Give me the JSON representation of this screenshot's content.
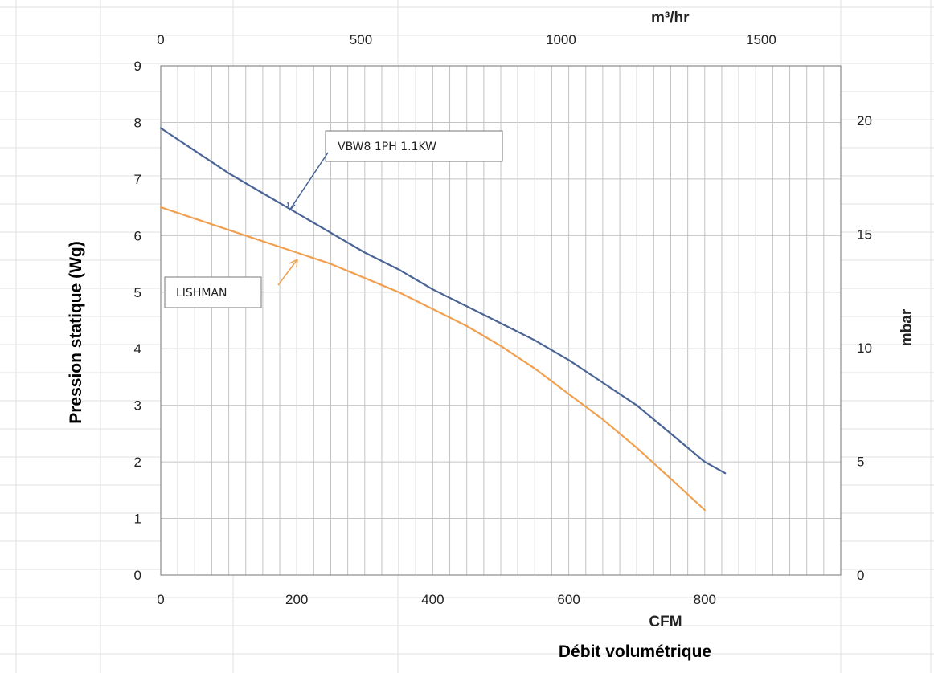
{
  "chart_data": {
    "type": "line",
    "xlabel": "Débit volumétrique",
    "x_unit": "CFM",
    "x_ticks": [
      "0",
      "200",
      "400",
      "600",
      "800"
    ],
    "xlim": [
      0,
      1000
    ],
    "x2_unit": "m³/hr",
    "x2_ticks": [
      "0",
      "500",
      "1000",
      "1500"
    ],
    "ylabel": "Pression statique (Wg)",
    "y_ticks": [
      "0",
      "1",
      "2",
      "3",
      "4",
      "5",
      "6",
      "7",
      "8",
      "9"
    ],
    "ylim": [
      0,
      9
    ],
    "y2_unit": "mbar",
    "y2_ticks": [
      "0",
      "5",
      "10",
      "15",
      "20"
    ],
    "grid": true,
    "series": [
      {
        "name": "VBW8 1PH 1.1KW",
        "color": "#4a6496",
        "points": [
          [
            0,
            7.9
          ],
          [
            50,
            7.5
          ],
          [
            100,
            7.1
          ],
          [
            150,
            6.75
          ],
          [
            200,
            6.4
          ],
          [
            250,
            6.05
          ],
          [
            300,
            5.7
          ],
          [
            350,
            5.4
          ],
          [
            400,
            5.05
          ],
          [
            450,
            4.75
          ],
          [
            500,
            4.45
          ],
          [
            550,
            4.15
          ],
          [
            600,
            3.8
          ],
          [
            650,
            3.4
          ],
          [
            700,
            3.0
          ],
          [
            750,
            2.5
          ],
          [
            800,
            2.0
          ],
          [
            830,
            1.8
          ]
        ]
      },
      {
        "name": "LISHMAN",
        "color": "#f0a050",
        "points": [
          [
            0,
            6.5
          ],
          [
            50,
            6.3
          ],
          [
            100,
            6.1
          ],
          [
            150,
            5.9
          ],
          [
            200,
            5.7
          ],
          [
            250,
            5.5
          ],
          [
            300,
            5.25
          ],
          [
            350,
            5.0
          ],
          [
            400,
            4.7
          ],
          [
            450,
            4.4
          ],
          [
            500,
            4.05
          ],
          [
            550,
            3.65
          ],
          [
            600,
            3.2
          ],
          [
            650,
            2.75
          ],
          [
            700,
            2.25
          ],
          [
            750,
            1.7
          ],
          [
            800,
            1.15
          ]
        ]
      }
    ]
  }
}
